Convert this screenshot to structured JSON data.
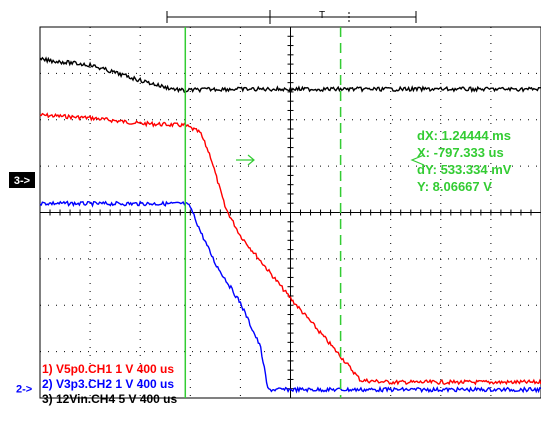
{
  "chart_data": {
    "type": "line",
    "title": "",
    "xlabel": "",
    "ylabel": "",
    "grid": true,
    "divisions": {
      "x": 10,
      "y": 8
    },
    "xlim": [
      -1.6,
      2.4
    ],
    "ylim": [
      -4,
      4
    ],
    "x_unit": "ms (relative to trigger)",
    "series": [
      {
        "label": "1) V5p0.CH1  1  V    400 us",
        "color": "#ff0000",
        "x": [
          -1.6,
          -1.2,
          -0.8,
          -0.44,
          -0.32,
          -0.24,
          -0.12,
          0.0,
          0.4,
          0.8,
          0.96,
          1.2,
          2.4
        ],
        "y": [
          2.1,
          2.04,
          1.92,
          1.88,
          1.72,
          1.22,
          0.1,
          -0.5,
          -1.85,
          -3.1,
          -3.62,
          -3.66,
          -3.66
        ]
      },
      {
        "label": "2) V3p3.CH2  1  V    400 us",
        "color": "#0000ff",
        "x": [
          -1.6,
          -1.2,
          -0.44,
          -0.4,
          -0.32,
          -0.2,
          0.0,
          0.16,
          0.22,
          0.6,
          2.4
        ],
        "y": [
          0.2,
          0.19,
          0.19,
          0.12,
          -0.4,
          -1.1,
          -1.95,
          -2.9,
          -3.82,
          -3.82,
          -3.82
        ]
      },
      {
        "label": "3) 12Vin.CH4  5  V    400 us",
        "color": "#000000",
        "x": [
          -1.6,
          -1.2,
          -0.8,
          -0.6,
          -0.44,
          -0.4,
          -0.2,
          2.4
        ],
        "y": [
          3.3,
          3.18,
          2.85,
          2.7,
          2.62,
          2.64,
          2.66,
          2.66
        ]
      }
    ],
    "cursors": {
      "x1": -0.44,
      "x2": 0.8,
      "color": "#33cc33",
      "readouts": [
        "dX: 1.24444 ms",
        "X: -797.333 us",
        "dY: 533.334 mV",
        "Y: 8.06667  V"
      ]
    },
    "channel_markers": [
      {
        "label": "3->",
        "level": 1.0
      },
      {
        "label": "2->",
        "level": -3.8
      }
    ],
    "trigger_marker": "T"
  }
}
